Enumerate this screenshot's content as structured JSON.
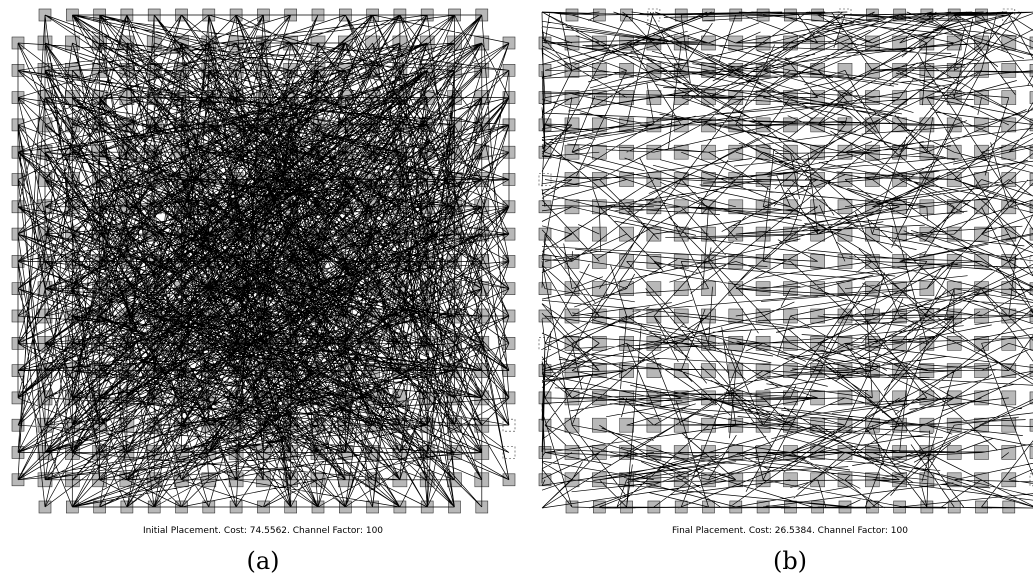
{
  "panels": [
    {
      "caption": "Initial Placement.  Cost: 74.5562.  Channel Factor: 100",
      "label": "(a)"
    },
    {
      "caption": "Final Placement.  Cost: 26.5384.  Channel Factor: 100",
      "label": "(b)"
    }
  ]
}
